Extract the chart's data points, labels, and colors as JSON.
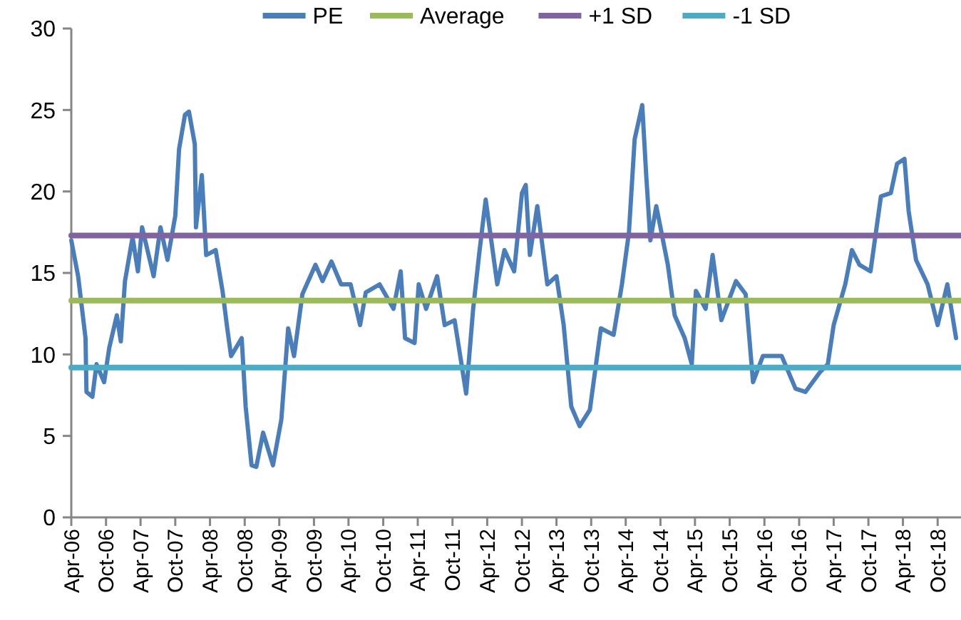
{
  "chart_data": {
    "type": "line",
    "xlim": [
      "2006-04-01",
      "2019-02-01"
    ],
    "xticks": [
      {
        "value": "2006-04-01",
        "label": "Apr-06"
      },
      {
        "value": "2006-10-01",
        "label": "Oct-06"
      },
      {
        "value": "2007-04-01",
        "label": "Apr-07"
      },
      {
        "value": "2007-10-01",
        "label": "Oct-07"
      },
      {
        "value": "2008-04-01",
        "label": "Apr-08"
      },
      {
        "value": "2008-10-01",
        "label": "Oct-08"
      },
      {
        "value": "2009-04-01",
        "label": "Apr-09"
      },
      {
        "value": "2009-10-01",
        "label": "Oct-09"
      },
      {
        "value": "2010-04-01",
        "label": "Apr-10"
      },
      {
        "value": "2010-10-01",
        "label": "Oct-10"
      },
      {
        "value": "2011-04-01",
        "label": "Apr-11"
      },
      {
        "value": "2011-10-01",
        "label": "Oct-11"
      },
      {
        "value": "2012-04-01",
        "label": "Apr-12"
      },
      {
        "value": "2012-10-01",
        "label": "Oct-12"
      },
      {
        "value": "2013-04-01",
        "label": "Apr-13"
      },
      {
        "value": "2013-10-01",
        "label": "Oct-13"
      },
      {
        "value": "2014-04-01",
        "label": "Apr-14"
      },
      {
        "value": "2014-10-01",
        "label": "Oct-14"
      },
      {
        "value": "2015-04-01",
        "label": "Apr-15"
      },
      {
        "value": "2015-10-01",
        "label": "Oct-15"
      },
      {
        "value": "2016-04-01",
        "label": "Apr-16"
      },
      {
        "value": "2016-10-01",
        "label": "Oct-16"
      },
      {
        "value": "2017-04-01",
        "label": "Apr-17"
      },
      {
        "value": "2017-10-01",
        "label": "Oct-17"
      },
      {
        "value": "2018-04-01",
        "label": "Apr-18"
      },
      {
        "value": "2018-10-01",
        "label": "Oct-18"
      }
    ],
    "ylim": [
      0,
      30
    ],
    "yticks": [
      0,
      5,
      10,
      15,
      20,
      25,
      30
    ],
    "grid": false,
    "legend": "top",
    "marker": "none",
    "line_style": "solid",
    "series": [
      {
        "name": "PE",
        "color": "#4a7ebb",
        "x": [
          "2006-04-01",
          "2006-05-07",
          "2006-06-15",
          "2006-06-20",
          "2006-07-21",
          "2006-08-12",
          "2006-09-21",
          "2006-10-18",
          "2006-11-27",
          "2006-12-18",
          "2007-01-09",
          "2007-02-18",
          "2007-03-18",
          "2007-04-09",
          "2007-06-09",
          "2007-07-15",
          "2007-08-21",
          "2007-10-01",
          "2007-10-21",
          "2007-11-21",
          "2007-12-12",
          "2008-01-12",
          "2008-01-18",
          "2008-02-18",
          "2008-03-12",
          "2008-05-01",
          "2008-06-06",
          "2008-07-01",
          "2008-07-21",
          "2008-09-15",
          "2008-10-06",
          "2008-11-06",
          "2008-12-01",
          "2009-01-06",
          "2009-02-27",
          "2009-04-12",
          "2009-05-18",
          "2009-06-18",
          "2009-08-01",
          "2009-10-09",
          "2009-11-15",
          "2010-01-01",
          "2010-02-21",
          "2010-04-12",
          "2010-06-01",
          "2010-07-01",
          "2010-09-12",
          "2010-11-24",
          "2011-01-01",
          "2011-01-24",
          "2011-03-15",
          "2011-04-06",
          "2011-05-15",
          "2011-07-12",
          "2011-08-21",
          "2011-10-12",
          "2011-12-12",
          "2012-01-18",
          "2012-02-18",
          "2012-03-24",
          "2012-05-24",
          "2012-07-01",
          "2012-08-21",
          "2012-10-01",
          "2012-10-21",
          "2012-11-12",
          "2012-12-21",
          "2013-02-12",
          "2013-04-01",
          "2013-05-09",
          "2013-06-18",
          "2013-08-01",
          "2013-09-24",
          "2013-11-21",
          "2014-01-27",
          "2014-03-12",
          "2014-04-18",
          "2014-05-18",
          "2014-06-27",
          "2014-07-18",
          "2014-08-09",
          "2014-09-09",
          "2014-11-09",
          "2014-12-15",
          "2015-02-06",
          "2015-03-15",
          "2015-04-06",
          "2015-05-27",
          "2015-07-03",
          "2015-08-18",
          "2015-11-03",
          "2015-12-24",
          "2016-02-01",
          "2016-03-24",
          "2016-07-01",
          "2016-09-12",
          "2016-11-03",
          "2017-01-18",
          "2017-03-01",
          "2017-04-01",
          "2017-06-01",
          "2017-07-06",
          "2017-08-15",
          "2017-10-12",
          "2017-12-06",
          "2018-01-27",
          "2018-03-01",
          "2018-04-09",
          "2018-05-01",
          "2018-06-09",
          "2018-08-09",
          "2018-10-01",
          "2018-11-21",
          "2019-01-06"
        ],
        "values": [
          17.0,
          14.8,
          11.0,
          7.7,
          7.4,
          9.4,
          8.3,
          10.4,
          12.4,
          10.8,
          14.5,
          17.2,
          15.1,
          17.8,
          14.8,
          17.8,
          15.8,
          18.5,
          22.6,
          24.7,
          24.9,
          22.9,
          17.8,
          21.0,
          16.1,
          16.4,
          13.9,
          11.6,
          9.9,
          11.0,
          6.8,
          3.2,
          3.1,
          5.2,
          3.2,
          6.0,
          11.6,
          9.9,
          13.7,
          15.5,
          14.5,
          15.7,
          14.3,
          14.3,
          11.8,
          13.8,
          14.3,
          12.8,
          15.1,
          11.0,
          10.7,
          14.3,
          12.8,
          14.8,
          11.8,
          12.1,
          7.6,
          12.8,
          16.1,
          19.5,
          14.3,
          16.4,
          15.1,
          19.9,
          20.4,
          16.1,
          19.1,
          14.3,
          14.8,
          11.8,
          6.8,
          5.6,
          6.6,
          11.6,
          11.2,
          14.3,
          17.5,
          23.2,
          25.3,
          21.0,
          17.0,
          19.1,
          15.5,
          12.4,
          11.0,
          9.4,
          13.9,
          12.8,
          16.1,
          12.1,
          14.5,
          13.7,
          8.3,
          9.9,
          9.9,
          7.9,
          7.7,
          8.9,
          9.4,
          11.8,
          14.3,
          16.4,
          15.5,
          15.1,
          19.7,
          19.9,
          21.7,
          22.0,
          18.8,
          15.8,
          14.3,
          11.8,
          14.3,
          11.0
        ]
      },
      {
        "name": "Average",
        "color": "#9bbb59",
        "x": [
          "2006-04-01",
          "2019-02-01"
        ],
        "values": [
          13.3,
          13.3
        ]
      },
      {
        "name": "+1 SD",
        "color": "#8064a2",
        "x": [
          "2006-04-01",
          "2019-02-01"
        ],
        "values": [
          17.3,
          17.3
        ]
      },
      {
        "name": "-1 SD",
        "color": "#4bacc6",
        "x": [
          "2006-04-01",
          "2019-02-01"
        ],
        "values": [
          9.2,
          9.2
        ]
      }
    ]
  }
}
